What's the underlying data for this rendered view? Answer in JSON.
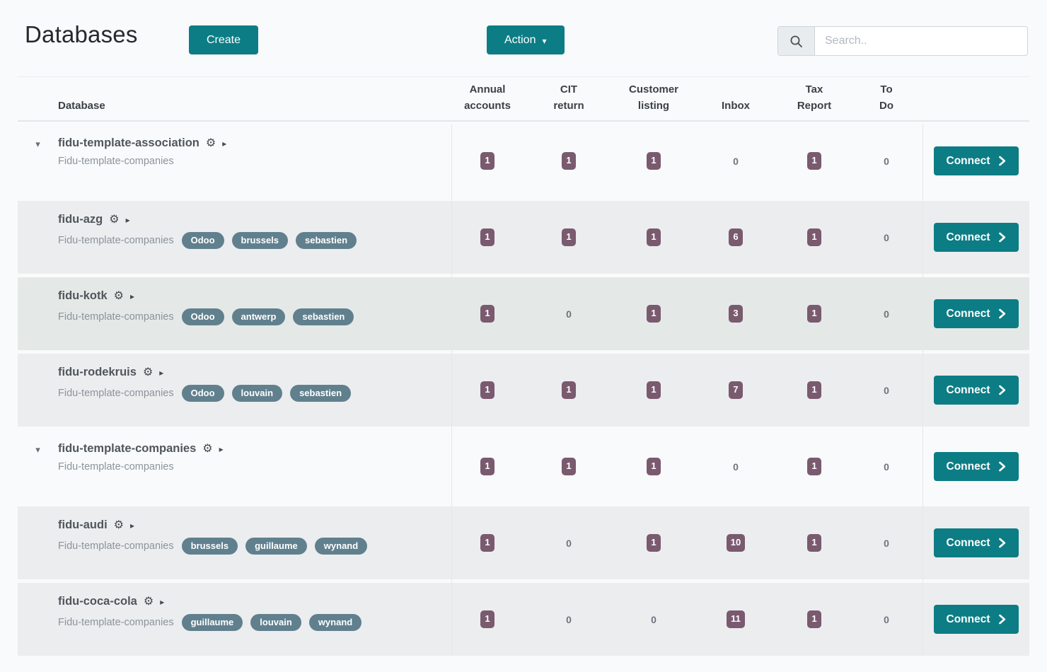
{
  "page": {
    "title": "Databases",
    "accent_color": "#0c7d85",
    "count_badge_color": "#7a5a6f",
    "tag_color": "#61808e"
  },
  "toolbar": {
    "create_label": "Create",
    "action_label": "Action",
    "action_caret": "▾",
    "search_placeholder": "Search.."
  },
  "table": {
    "database_column_label": "Database",
    "metric_columns": [
      "Annual\naccounts",
      "CIT\nreturn",
      "Customer\nlisting",
      "Inbox",
      "Tax\nReport",
      "To\nDo"
    ],
    "connect_label": "Connect",
    "expand_caret": "▾",
    "name_arrow": "▸",
    "gear_glyph": "⚙",
    "rows": [
      {
        "name": "fidu-template-association",
        "expandable": true,
        "subtitle": "Fidu-template-companies",
        "tags": [],
        "values": [
          1,
          1,
          1,
          0,
          1,
          0
        ],
        "style": "light"
      },
      {
        "name": "fidu-azg",
        "expandable": false,
        "subtitle": "Fidu-template-companies",
        "tags": [
          "Odoo",
          "brussels",
          "sebastien"
        ],
        "values": [
          1,
          1,
          1,
          6,
          1,
          0
        ],
        "style": "gray"
      },
      {
        "name": "fidu-kotk",
        "expandable": false,
        "subtitle": "Fidu-template-companies",
        "tags": [
          "Odoo",
          "antwerp",
          "sebastien"
        ],
        "values": [
          1,
          0,
          1,
          3,
          1,
          0
        ],
        "style": "hover"
      },
      {
        "name": "fidu-rodekruis",
        "expandable": false,
        "subtitle": "Fidu-template-companies",
        "tags": [
          "Odoo",
          "louvain",
          "sebastien"
        ],
        "values": [
          1,
          1,
          1,
          7,
          1,
          0
        ],
        "style": "gray"
      },
      {
        "name": "fidu-template-companies",
        "expandable": true,
        "subtitle": "Fidu-template-companies",
        "tags": [],
        "values": [
          1,
          1,
          1,
          0,
          1,
          0
        ],
        "style": "light"
      },
      {
        "name": "fidu-audi",
        "expandable": false,
        "subtitle": "Fidu-template-companies",
        "tags": [
          "brussels",
          "guillaume",
          "wynand"
        ],
        "values": [
          1,
          0,
          1,
          10,
          1,
          0
        ],
        "style": "gray"
      },
      {
        "name": "fidu-coca-cola",
        "expandable": false,
        "subtitle": "Fidu-template-companies",
        "tags": [
          "guillaume",
          "louvain",
          "wynand"
        ],
        "values": [
          1,
          0,
          0,
          11,
          1,
          0
        ],
        "style": "gray"
      }
    ]
  }
}
